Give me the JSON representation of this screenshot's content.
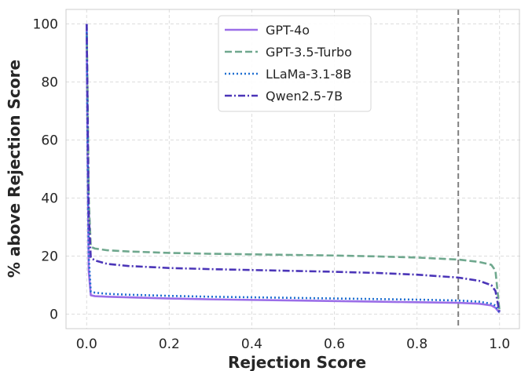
{
  "chart_data": {
    "type": "line",
    "title": "",
    "xlabel": "Rejection Score",
    "ylabel": "% above Rejection Score",
    "xlim": [
      -0.05,
      1.05
    ],
    "ylim": [
      -5,
      105
    ],
    "xticks": [
      0.0,
      0.2,
      0.4,
      0.6,
      0.8,
      1.0
    ],
    "xtick_labels": [
      "0.0",
      "0.2",
      "0.4",
      "0.6",
      "0.8",
      "1.0"
    ],
    "yticks": [
      0,
      20,
      40,
      60,
      80,
      100
    ],
    "ytick_labels": [
      "0",
      "20",
      "40",
      "60",
      "80",
      "100"
    ],
    "grid": true,
    "legend_position": "top-center",
    "threshold_line": {
      "x": 0.9,
      "color": "#808080",
      "style": "dashed"
    },
    "series": [
      {
        "name": "GPT-4o",
        "color": "#9b6ee8",
        "style": "solid",
        "x": [
          0.0,
          0.002,
          0.005,
          0.01,
          0.02,
          0.05,
          0.1,
          0.2,
          0.3,
          0.4,
          0.5,
          0.6,
          0.7,
          0.8,
          0.9,
          0.95,
          0.98,
          0.99,
          1.0
        ],
        "y": [
          100,
          60,
          15,
          6.5,
          6.2,
          6.0,
          5.8,
          5.4,
          5.1,
          4.9,
          4.7,
          4.5,
          4.3,
          4.1,
          3.9,
          3.6,
          3.0,
          2.2,
          0.5
        ]
      },
      {
        "name": "GPT-3.5-Turbo",
        "color": "#6fa88e",
        "style": "dashed",
        "x": [
          0.0,
          0.002,
          0.005,
          0.01,
          0.02,
          0.05,
          0.1,
          0.2,
          0.3,
          0.4,
          0.5,
          0.6,
          0.7,
          0.8,
          0.9,
          0.95,
          0.98,
          0.99,
          1.0
        ],
        "y": [
          100,
          80,
          40,
          23.2,
          22.6,
          22.0,
          21.6,
          21.1,
          20.8,
          20.6,
          20.4,
          20.2,
          19.9,
          19.5,
          18.8,
          18.0,
          17.0,
          15.0,
          1.0
        ]
      },
      {
        "name": "LLaMa-3.1-8B",
        "color": "#1f6fd1",
        "style": "dotted",
        "x": [
          0.0,
          0.002,
          0.005,
          0.01,
          0.02,
          0.05,
          0.1,
          0.2,
          0.3,
          0.4,
          0.5,
          0.6,
          0.7,
          0.8,
          0.9,
          0.95,
          0.98,
          0.99,
          1.0
        ],
        "y": [
          100,
          60,
          20,
          7.8,
          7.4,
          7.0,
          6.7,
          6.3,
          6.0,
          5.8,
          5.6,
          5.4,
          5.2,
          5.0,
          4.7,
          4.3,
          3.6,
          3.0,
          0.5
        ]
      },
      {
        "name": "Qwen2.5-7B",
        "color": "#4b35b8",
        "style": "dashdot",
        "x": [
          0.0,
          0.002,
          0.005,
          0.01,
          0.02,
          0.05,
          0.1,
          0.2,
          0.3,
          0.4,
          0.5,
          0.6,
          0.7,
          0.8,
          0.9,
          0.95,
          0.98,
          0.99,
          1.0
        ],
        "y": [
          100,
          75,
          35,
          19.5,
          18.5,
          17.3,
          16.6,
          15.9,
          15.5,
          15.2,
          14.9,
          14.6,
          14.2,
          13.6,
          12.6,
          11.5,
          10.0,
          8.0,
          0.5
        ]
      }
    ]
  }
}
